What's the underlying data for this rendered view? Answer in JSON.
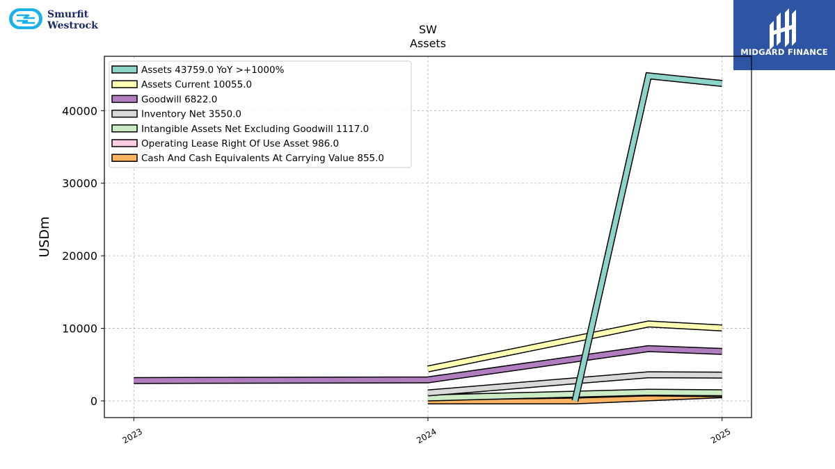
{
  "brand": {
    "left_logo_line1": "Smurfit",
    "left_logo_line2": "Westrock",
    "right_logo_text": "MIDGARD FINANCE",
    "right_logo_bg": "#2d55a4",
    "left_logo_color": "#1ab0e8"
  },
  "chart_data": {
    "type": "line",
    "title": "SW",
    "subtitle": "Assets",
    "ylabel": "USDm",
    "xlabel": "",
    "ylim": [
      -2300,
      47500
    ],
    "xlim": [
      2022.9,
      2025.1
    ],
    "yticks": [
      0,
      10000,
      20000,
      30000,
      40000
    ],
    "ytick_labels": [
      "0",
      "10000",
      "20000",
      "30000",
      "40000"
    ],
    "xticks": [
      2023,
      2024,
      2025
    ],
    "xtick_labels": [
      "2023",
      "2024",
      "2025"
    ],
    "grid": true,
    "legend_position": "top-left",
    "series": [
      {
        "name": "Assets",
        "legend": "Assets  43759.0 YoY >+1000%",
        "color": "#8dd3c7",
        "x": [
          2024.5,
          2024.75,
          2025.0
        ],
        "y": [
          0,
          44800,
          43759
        ]
      },
      {
        "name": "Assets Current",
        "legend": "Assets Current  10055.0",
        "color": "#ffffb3",
        "x": [
          2024.0,
          2024.75,
          2025.0
        ],
        "y": [
          4400,
          10600,
          10055
        ]
      },
      {
        "name": "Goodwill",
        "legend": "Goodwill  6822.0",
        "color": "#b07dbf",
        "x": [
          2023.0,
          2024.0,
          2024.75,
          2025.0
        ],
        "y": [
          2800,
          2900,
          7200,
          6822
        ]
      },
      {
        "name": "Inventory Net",
        "legend": "Inventory Net  3550.0",
        "color": "#d9d9d9",
        "x": [
          2024.0,
          2024.75,
          2025.0
        ],
        "y": [
          1100,
          3600,
          3550
        ]
      },
      {
        "name": "Intangible Assets Net Excluding Goodwill",
        "legend": "Intangible Assets Net Excluding Goodwill  1117.0",
        "color": "#ccebc5",
        "x": [
          2024.0,
          2024.75,
          2025.0
        ],
        "y": [
          400,
          1200,
          1117
        ]
      },
      {
        "name": "Operating Lease Right Of Use Asset",
        "legend": "Operating Lease Right Of Use Asset  986.0",
        "color": "#fccde5",
        "x": [
          2024.0,
          2024.5,
          2024.75,
          2025.0
        ],
        "y": [
          500,
          800,
          1100,
          986
        ]
      },
      {
        "name": "Cash And Cash Equivalents At Carrying Value",
        "legend": "Cash And Cash Equivalents At Carrying Value  855.0",
        "color": "#fdb462",
        "x": [
          2024.0,
          2024.5,
          2025.0
        ],
        "y": [
          0,
          0,
          855
        ]
      }
    ]
  }
}
